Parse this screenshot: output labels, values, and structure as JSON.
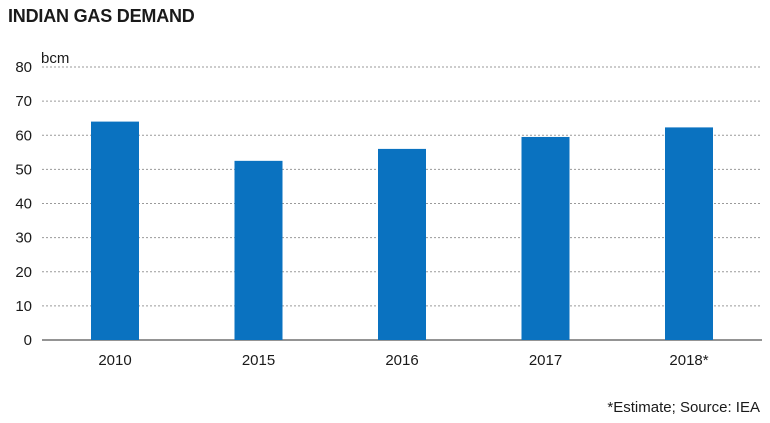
{
  "title": "INDIAN GAS DEMAND",
  "source_note": "*Estimate; Source: IEA",
  "colors": {
    "bar": "#0a72c0",
    "grid": "#9a9a9a",
    "axis": "#555555",
    "text": "#1a1a1a"
  },
  "chart_data": {
    "type": "bar",
    "title": "INDIAN GAS DEMAND",
    "unit_label": "bcm",
    "categories": [
      "2010",
      "2015",
      "2016",
      "2017",
      "2018*"
    ],
    "values": [
      64,
      52.5,
      56,
      59.5,
      62.3
    ],
    "ylim": [
      0,
      80
    ],
    "yticks": [
      0,
      10,
      20,
      30,
      40,
      50,
      60,
      70,
      80
    ],
    "grid": "horizontal dashed",
    "legend": "none"
  }
}
